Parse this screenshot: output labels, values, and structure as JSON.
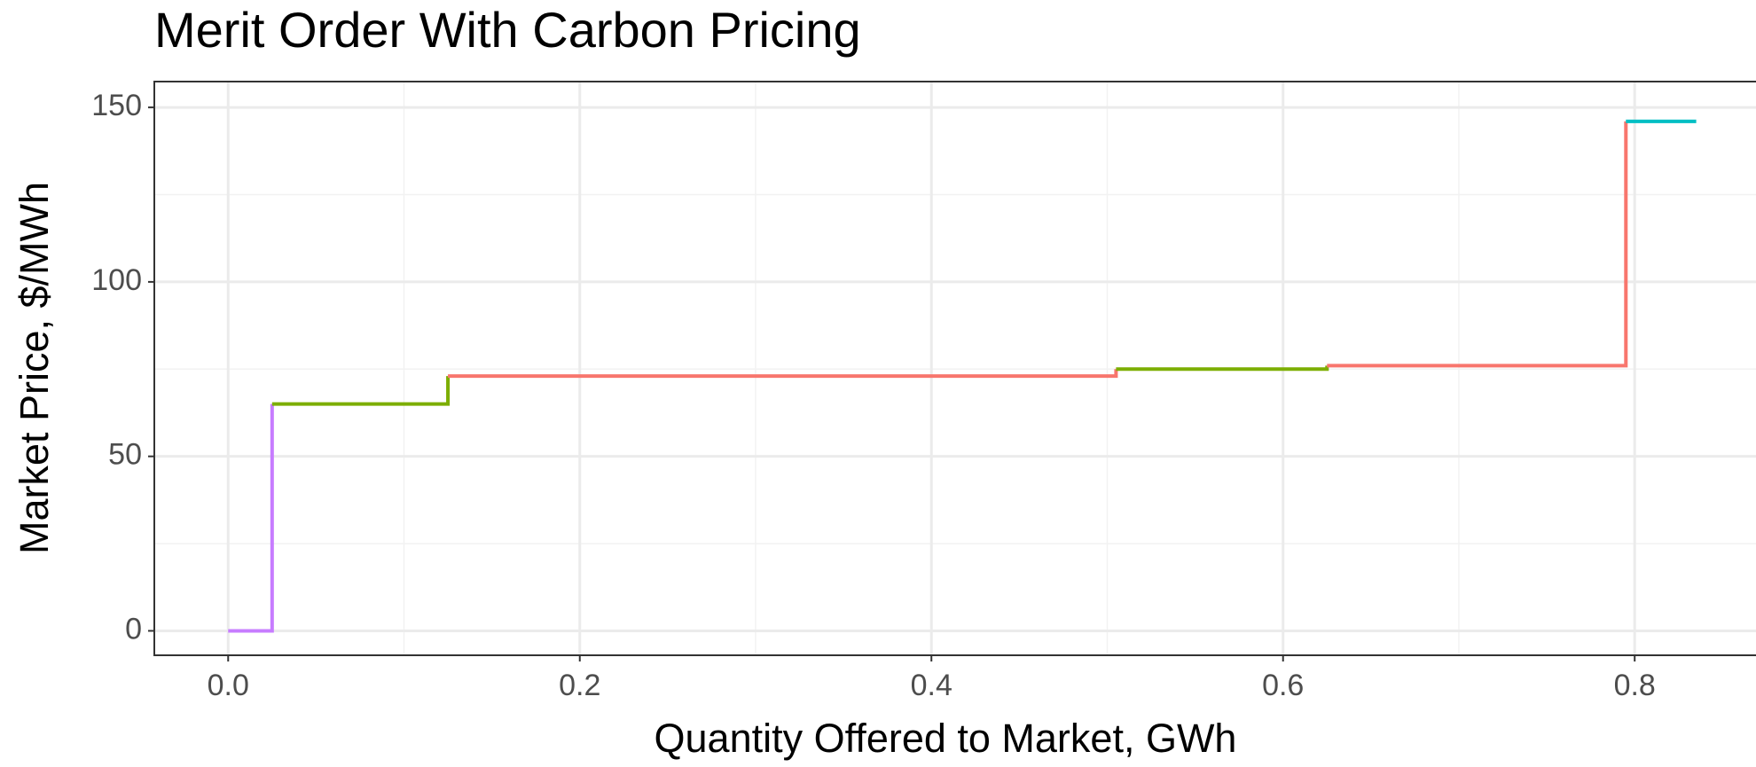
{
  "chart_data": {
    "type": "step",
    "title": "Merit Order With Carbon Pricing",
    "x_label": "Quantity Offered to Market, GWh",
    "y_label": "Market Price, $/MWh",
    "xlim": [
      -0.042,
      0.869
    ],
    "ylim": [
      -7,
      157.4
    ],
    "xticks": [
      {
        "value": 0,
        "label": "0.0"
      },
      0.2,
      0.4,
      0.6,
      0.8
    ],
    "yticks": [
      0,
      50,
      100,
      150
    ],
    "grid": true,
    "series": [
      {
        "color": "#C77CFF",
        "x": [
          0,
          0.025
        ],
        "values": [
          0,
          65
        ]
      },
      {
        "color": "#7CAE00",
        "x": [
          0.025,
          0.125
        ],
        "values": [
          65,
          73
        ]
      },
      {
        "color": "#F8766D",
        "x": [
          0.125,
          0.505
        ],
        "values": [
          73,
          75
        ]
      },
      {
        "color": "#7CAE00",
        "x": [
          0.505,
          0.625
        ],
        "values": [
          75,
          76
        ]
      },
      {
        "color": "#F8766D",
        "x": [
          0.625,
          0.795
        ],
        "values": [
          76,
          146
        ]
      },
      {
        "color": "#00BFC4",
        "x": [
          0.795,
          0.835
        ],
        "values": [
          146,
          146
        ]
      }
    ]
  }
}
